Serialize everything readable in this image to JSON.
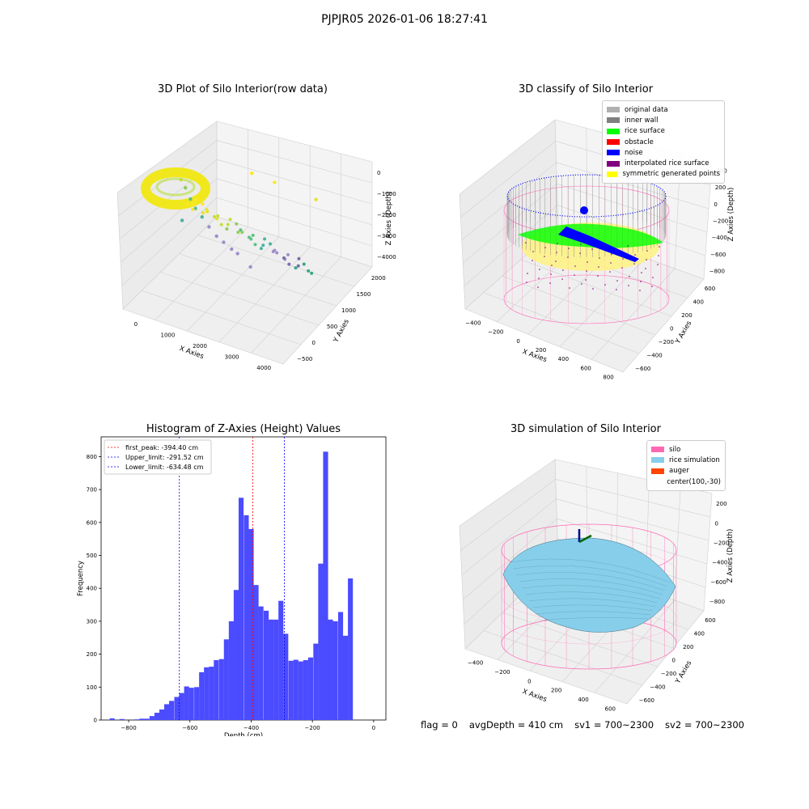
{
  "suptitle": "PJPJR05 2026-01-06 18:27:41",
  "footer": {
    "flag": "flag = 0",
    "avg_depth": "avgDepth = 410 cm",
    "sv1": "sv1 = 700~2300",
    "sv2": "sv2 = 700~2300"
  },
  "colors": {
    "histogram_bar": "#4b4bff",
    "first_peak_line": "#ff0000",
    "limit_line": "#0000ff",
    "silo_wire": "#ff69b4",
    "rice_simulation": "#87ceeb",
    "auger": "#ff4500"
  },
  "chart_data": [
    {
      "type": "scatter",
      "title": "3D Plot of Silo Interior(row data)",
      "xlabel": "X Axies",
      "ylabel": "Y Axies",
      "zlabel": "Z Axies (Depth)",
      "x_ticks": [
        "0",
        "1000",
        "2000",
        "3000",
        "4000"
      ],
      "y_ticks": [
        "−500",
        "0",
        "500",
        "1000",
        "1500",
        "2000"
      ],
      "z_ticks": [
        "−4000",
        "−3000",
        "−2000",
        "−1000",
        "0"
      ],
      "xlim": [
        -500,
        4500
      ],
      "ylim": [
        -700,
        2100
      ],
      "zlim": [
        -4300,
        100
      ],
      "points": [
        {
          "x": 3300,
          "y": 200,
          "z": -3000
        },
        {
          "x": 2600,
          "y": 700,
          "z": -3100
        },
        {
          "x": 2300,
          "y": 900,
          "z": -3200
        },
        {
          "x": 1950,
          "y": 1100,
          "z": -3200
        },
        {
          "x": 1700,
          "y": 1200,
          "z": -3100
        },
        {
          "x": 1400,
          "y": 1350,
          "z": -2900
        },
        {
          "x": 1150,
          "y": 1450,
          "z": -2600
        },
        {
          "x": 950,
          "y": 1500,
          "z": -2300
        },
        {
          "x": 750,
          "y": 1600,
          "z": -2000
        },
        {
          "x": 550,
          "y": 1700,
          "z": -1600
        },
        {
          "x": 400,
          "y": 1750,
          "z": -1300
        },
        {
          "x": 3700,
          "y": 1800,
          "z": -500
        },
        {
          "x": 2600,
          "y": 1900,
          "z": -300
        },
        {
          "x": 2000,
          "y": 1950,
          "z": -200
        },
        {
          "x": 1000,
          "y": 1000,
          "z": -2500
        }
      ]
    },
    {
      "type": "scatter",
      "title": "3D classify of Silo Interior",
      "xlabel": "X Axies",
      "ylabel": "Y Axies",
      "zlabel": "Z Axies (Depth)",
      "x_ticks": [
        "−400",
        "−200",
        "0",
        "200",
        "400",
        "600",
        "800"
      ],
      "y_ticks": [
        "−600",
        "−400",
        "−200",
        "0",
        "200",
        "400",
        "600"
      ],
      "z_ticks": [
        "−800",
        "−600",
        "−400",
        "−200",
        "0",
        "200",
        "400"
      ],
      "legend_position": "top-right",
      "legend": [
        {
          "label": "original data",
          "color": "#b0b0b0"
        },
        {
          "label": "inner wall",
          "color": "#808080"
        },
        {
          "label": "rice surface",
          "color": "#00ff00"
        },
        {
          "label": "obstacle",
          "color": "#ff0000"
        },
        {
          "label": "noise",
          "color": "#0000ff"
        },
        {
          "label": "interpolated rice surface",
          "color": "#800080"
        },
        {
          "label": "symmetric generated points",
          "color": "#ffff00"
        }
      ]
    },
    {
      "type": "bar",
      "title": "Histogram of Z-Axies (Height) Values",
      "xlabel": "Depth (cm)",
      "ylabel": "Frequency",
      "xlim": [
        -890,
        40
      ],
      "ylim": [
        0,
        860
      ],
      "x_ticks": [
        "−800",
        "−600",
        "−400",
        "−200",
        "0"
      ],
      "y_ticks": [
        "0",
        "100",
        "200",
        "300",
        "400",
        "500",
        "600",
        "700",
        "800"
      ],
      "bin_width": 16.2,
      "bin_starts": [
        -862,
        -846,
        -830,
        -813,
        -797,
        -781,
        -765,
        -749,
        -732,
        -716,
        -700,
        -684,
        -668,
        -651,
        -635,
        -619,
        -603,
        -586,
        -570,
        -554,
        -538,
        -522,
        -505,
        -489,
        -473,
        -457,
        -441,
        -424,
        -408,
        -392,
        -376,
        -359,
        -343,
        -327,
        -311,
        -295,
        -278,
        -262,
        -246,
        -230,
        -214,
        -197,
        -181,
        -165,
        -149,
        -133,
        -116,
        -100,
        -84,
        -68,
        -52,
        -35,
        -19,
        -3
      ],
      "values": [
        5,
        0,
        3,
        0,
        0,
        2,
        4,
        4,
        12,
        22,
        32,
        48,
        58,
        70,
        82,
        102,
        98,
        100,
        145,
        160,
        162,
        182,
        185,
        245,
        300,
        395,
        675,
        622,
        580,
        410,
        345,
        332,
        305,
        305,
        362,
        262,
        180,
        183,
        178,
        182,
        190,
        232,
        475,
        815,
        305,
        300,
        328,
        256,
        430,
        0,
        0,
        0,
        0,
        0
      ],
      "lines": [
        {
          "label": "first_peak: -394.40 cm",
          "x": -394.4,
          "color": "#ff0000"
        },
        {
          "label": "Upper_limit: -291.52 cm",
          "x": -291.52,
          "color": "#0000ff"
        },
        {
          "label": "Lower_limit: -634.48 cm",
          "x": -634.48,
          "color": "#0000ff"
        }
      ],
      "legend_position": "top-left"
    },
    {
      "type": "area",
      "title": "3D simulation of Silo Interior",
      "xlabel": "X Axies",
      "ylabel": "Y Axies",
      "zlabel": "Z Axies (Depth)",
      "x_ticks": [
        "−400",
        "−200",
        "0",
        "200",
        "400",
        "600"
      ],
      "y_ticks": [
        "−600",
        "−400",
        "−200",
        "0",
        "200",
        "400",
        "600"
      ],
      "z_ticks": [
        "−800",
        "−600",
        "−400",
        "−200",
        "0",
        "200"
      ],
      "legend_position": "top-right",
      "legend": [
        {
          "label": "silo",
          "color": "#ff69b4"
        },
        {
          "label": "rice simulation",
          "color": "#87ceeb"
        },
        {
          "label": "auger",
          "color": "#ff4500"
        },
        {
          "label": "center(100,-30)",
          "color": ""
        }
      ]
    }
  ]
}
